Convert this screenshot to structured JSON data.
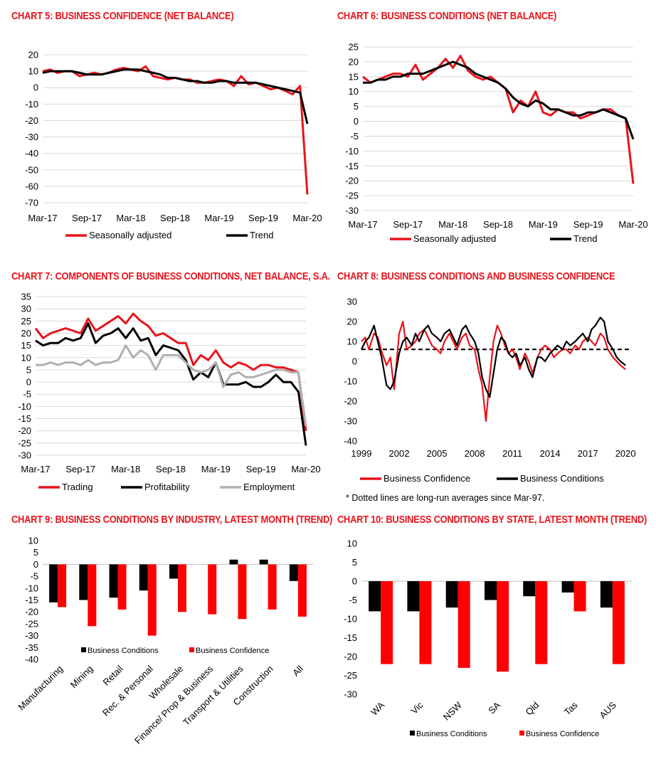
{
  "chart_data": [
    {
      "id": "c5",
      "type": "line",
      "title": "CHART 5: BUSINESS CONFIDENCE (NET BALANCE)",
      "xlabel": "",
      "ylabel": "",
      "x_ticks": [
        "Mar-17",
        "Sep-17",
        "Mar-18",
        "Sep-18",
        "Mar-19",
        "Sep-19",
        "Mar-20"
      ],
      "x_range": [
        0,
        36
      ],
      "ylim": [
        -70,
        20
      ],
      "y_ticks": [
        20,
        10,
        0,
        -10,
        -20,
        -30,
        -40,
        -50,
        -60,
        -70
      ],
      "grid": true,
      "legend": "bottom",
      "series": [
        {
          "name": "Seasonally adjusted",
          "color": "#e8141b",
          "values": [
            10,
            11,
            9,
            10,
            10,
            7,
            8,
            9,
            8,
            9,
            11,
            12,
            11,
            10,
            13,
            7,
            6,
            5,
            6,
            5,
            5,
            3,
            3,
            4,
            5,
            4,
            1,
            7,
            2,
            3,
            1,
            -1,
            0,
            -2,
            -4,
            1,
            -65
          ]
        },
        {
          "name": "Trend",
          "color": "#000000",
          "values": [
            9,
            10,
            10,
            10,
            10,
            9,
            8,
            8,
            8,
            9,
            10,
            11,
            11,
            11,
            10,
            9,
            8,
            6,
            6,
            5,
            4,
            4,
            3,
            3,
            4,
            4,
            3,
            3,
            3,
            3,
            2,
            1,
            0,
            -1,
            -2,
            -3,
            -22
          ]
        }
      ]
    },
    {
      "id": "c6",
      "type": "line",
      "title": "CHART 6: BUSINESS CONDITIONS (NET BALANCE)",
      "xlabel": "",
      "ylabel": "",
      "x_ticks": [
        "Mar-17",
        "Sep-17",
        "Mar-18",
        "Sep-18",
        "Mar-19",
        "Sep-19",
        "Mar-20"
      ],
      "x_range": [
        0,
        36
      ],
      "ylim": [
        -30,
        25
      ],
      "y_ticks": [
        25,
        20,
        15,
        10,
        5,
        0,
        -5,
        -10,
        -15,
        -20,
        -25,
        -30
      ],
      "grid": true,
      "legend": "bottom",
      "series": [
        {
          "name": "Seasonally adjusted",
          "color": "#e8141b",
          "values": [
            15,
            13,
            14,
            15,
            16,
            16,
            15,
            19,
            14,
            16,
            18,
            21,
            18,
            22,
            17,
            15,
            14,
            15,
            13,
            11,
            3,
            7,
            5,
            10,
            3,
            2,
            4,
            3,
            3,
            1,
            2,
            3,
            4,
            4,
            2,
            1,
            -21
          ]
        },
        {
          "name": "Trend",
          "color": "#000000",
          "values": [
            13,
            13,
            14,
            14,
            15,
            15,
            16,
            16,
            16,
            17,
            18,
            19,
            20,
            19,
            18,
            16,
            15,
            14,
            13,
            11,
            8,
            6,
            5,
            7,
            6,
            4,
            4,
            3,
            2,
            2,
            3,
            3,
            4,
            3,
            2,
            1,
            -6
          ]
        }
      ]
    },
    {
      "id": "c7",
      "type": "line",
      "title": "CHART 7: COMPONENTS OF BUSINESS CONDITIONS, NET BALANCE, S.A.",
      "xlabel": "",
      "ylabel": "",
      "x_ticks": [
        "Mar-17",
        "Sep-17",
        "Mar-18",
        "Sep-18",
        "Mar-19",
        "Sep-19",
        "Mar-20"
      ],
      "x_range": [
        0,
        36
      ],
      "ylim": [
        -30,
        35
      ],
      "y_ticks": [
        35,
        30,
        25,
        20,
        15,
        10,
        5,
        0,
        -5,
        -10,
        -15,
        -20,
        -25,
        -30
      ],
      "grid": true,
      "legend": "bottom",
      "series": [
        {
          "name": "Trading",
          "color": "#e8141b",
          "values": [
            22,
            18,
            20,
            21,
            22,
            21,
            20,
            26,
            21,
            23,
            25,
            27,
            24,
            28,
            25,
            23,
            19,
            20,
            18,
            16,
            16,
            7,
            11,
            9,
            13,
            8,
            6,
            8,
            7,
            5,
            7,
            7,
            6,
            6,
            5,
            4,
            -20
          ]
        },
        {
          "name": "Profitability",
          "color": "#000000",
          "values": [
            17,
            15,
            16,
            16,
            18,
            17,
            18,
            24,
            16,
            19,
            20,
            22,
            18,
            22,
            17,
            18,
            11,
            15,
            14,
            13,
            9,
            1,
            4,
            2,
            8,
            -1,
            -1,
            -1,
            0,
            -2,
            -2,
            0,
            3,
            0,
            0,
            -4,
            -26
          ]
        },
        {
          "name": "Employment",
          "color": "#b0b0b0",
          "values": [
            7,
            7,
            8,
            7,
            8,
            8,
            7,
            9,
            7,
            8,
            8,
            9,
            15,
            10,
            13,
            11,
            5,
            11,
            11,
            11,
            8,
            5,
            4,
            5,
            8,
            -2,
            3,
            4,
            2,
            2,
            3,
            4,
            5,
            5,
            4,
            4,
            -18
          ]
        }
      ]
    },
    {
      "id": "c8",
      "type": "line",
      "title": "CHART 8: BUSINESS CONDITIONS AND BUSINESS CONFIDENCE",
      "xlabel": "",
      "ylabel": "",
      "x_ticks": [
        "1999",
        "2002",
        "2005",
        "2008",
        "2011",
        "2014",
        "2017",
        "2020"
      ],
      "x_range": [
        1999,
        2020.5
      ],
      "ylim": [
        -40,
        30
      ],
      "y_ticks": [
        30,
        20,
        10,
        0,
        -10,
        -20,
        -30,
        -40
      ],
      "grid": false,
      "legend": "bottom",
      "reference_lines": [
        {
          "name": "Business Conditions long-run average",
          "value": 6,
          "style": "dashed"
        },
        {
          "name": "Business Confidence long-run average",
          "value": 6,
          "style": "dashed"
        }
      ],
      "series": [
        {
          "name": "Business Confidence",
          "color": "#e8141b",
          "x": [
            1999,
            1999.3,
            1999.6,
            2000,
            2000.3,
            2000.6,
            2001,
            2001.3,
            2001.6,
            2002,
            2002.3,
            2002.6,
            2003,
            2003.3,
            2003.6,
            2004,
            2004.3,
            2004.6,
            2005,
            2005.3,
            2005.6,
            2006,
            2006.3,
            2006.6,
            2007,
            2007.3,
            2007.6,
            2008,
            2008.3,
            2008.6,
            2008.9,
            2009.2,
            2009.5,
            2009.8,
            2010.1,
            2010.4,
            2010.7,
            2011,
            2011.3,
            2011.6,
            2012,
            2012.3,
            2012.6,
            2013,
            2013.3,
            2013.6,
            2014,
            2014.3,
            2014.6,
            2015,
            2015.3,
            2015.6,
            2016,
            2016.3,
            2016.6,
            2017,
            2017.3,
            2017.6,
            2018,
            2018.3,
            2018.6,
            2019,
            2019.3,
            2019.6,
            2020
          ],
          "values": [
            10,
            12,
            6,
            14,
            12,
            5,
            -2,
            2,
            -14,
            14,
            20,
            6,
            8,
            10,
            14,
            16,
            12,
            8,
            6,
            4,
            10,
            14,
            10,
            6,
            12,
            14,
            8,
            6,
            -4,
            -12,
            -30,
            -8,
            10,
            18,
            14,
            8,
            4,
            6,
            2,
            -4,
            4,
            0,
            -6,
            2,
            6,
            8,
            6,
            2,
            4,
            6,
            6,
            4,
            8,
            6,
            10,
            12,
            10,
            8,
            14,
            12,
            6,
            2,
            0,
            -2,
            -4
          ]
        },
        {
          "name": "Business Conditions",
          "color": "#000000",
          "x": [
            1999,
            1999.3,
            1999.6,
            2000,
            2000.3,
            2000.6,
            2001,
            2001.3,
            2001.6,
            2002,
            2002.3,
            2002.6,
            2003,
            2003.3,
            2003.6,
            2004,
            2004.3,
            2004.6,
            2005,
            2005.3,
            2005.6,
            2006,
            2006.3,
            2006.6,
            2007,
            2007.3,
            2007.6,
            2008,
            2008.3,
            2008.6,
            2008.9,
            2009.2,
            2009.5,
            2009.8,
            2010.1,
            2010.4,
            2010.7,
            2011,
            2011.3,
            2011.6,
            2012,
            2012.3,
            2012.6,
            2013,
            2013.3,
            2013.6,
            2014,
            2014.3,
            2014.6,
            2015,
            2015.3,
            2015.6,
            2016,
            2016.3,
            2016.6,
            2017,
            2017.3,
            2017.6,
            2018,
            2018.3,
            2018.6,
            2019,
            2019.3,
            2019.6,
            2020
          ],
          "values": [
            6,
            10,
            12,
            18,
            10,
            2,
            -12,
            -14,
            -10,
            4,
            10,
            12,
            8,
            14,
            10,
            16,
            18,
            14,
            12,
            10,
            14,
            16,
            12,
            8,
            16,
            18,
            14,
            10,
            4,
            -8,
            -14,
            -18,
            -6,
            6,
            12,
            10,
            4,
            2,
            4,
            -2,
            2,
            -4,
            -8,
            2,
            2,
            0,
            4,
            6,
            8,
            6,
            10,
            8,
            10,
            12,
            14,
            10,
            16,
            18,
            22,
            20,
            10,
            6,
            2,
            0,
            -2
          ]
        }
      ]
    },
    {
      "id": "c9",
      "type": "bar",
      "title": "CHART 9: BUSINESS CONDITIONS BY INDUSTRY, LATEST MONTH (TREND)",
      "xlabel": "",
      "ylabel": "",
      "categories": [
        "Manufacturing",
        "Mining",
        "Retail",
        "Rec. & Personal",
        "Wholesale",
        "Finance/ Prop & Business",
        "Transport & Utilities",
        "Construction",
        "All"
      ],
      "ylim": [
        -40,
        10
      ],
      "y_ticks": [
        10,
        5,
        0,
        -5,
        -10,
        -15,
        -20,
        -25,
        -30,
        -35,
        -40
      ],
      "grid": false,
      "legend": "bottom",
      "series": [
        {
          "name": "Business Conditions",
          "color": "#000000",
          "values": [
            -16,
            -15,
            -14,
            -11,
            -6,
            0,
            2,
            2,
            -7
          ]
        },
        {
          "name": "Business Confidence",
          "color": "#ff0000",
          "values": [
            -18,
            -26,
            -19,
            -30,
            -20,
            -21,
            -23,
            -19,
            -22
          ]
        }
      ]
    },
    {
      "id": "c10",
      "type": "bar",
      "title": "CHART 10: BUSINESS CONDITIONS BY STATE, LATEST MONTH (TREND)",
      "xlabel": "",
      "ylabel": "",
      "categories": [
        "WA",
        "Vic",
        "NSW",
        "SA",
        "Qld",
        "Tas",
        "AUS"
      ],
      "ylim": [
        -30,
        10
      ],
      "y_ticks": [
        10,
        5,
        0,
        -5,
        -10,
        -15,
        -20,
        -25,
        -30
      ],
      "grid": false,
      "legend": "bottom",
      "series": [
        {
          "name": "Business Conditions",
          "color": "#000000",
          "values": [
            -8,
            -8,
            -7,
            -5,
            -4,
            -3,
            -7
          ]
        },
        {
          "name": "Business Confidence",
          "color": "#ff0000",
          "values": [
            -22,
            -22,
            -23,
            -24,
            -22,
            -8,
            -22
          ]
        }
      ]
    }
  ],
  "notes": {
    "c8_footnote": "* Dotted lines are long-run  averages since Mar-97."
  }
}
